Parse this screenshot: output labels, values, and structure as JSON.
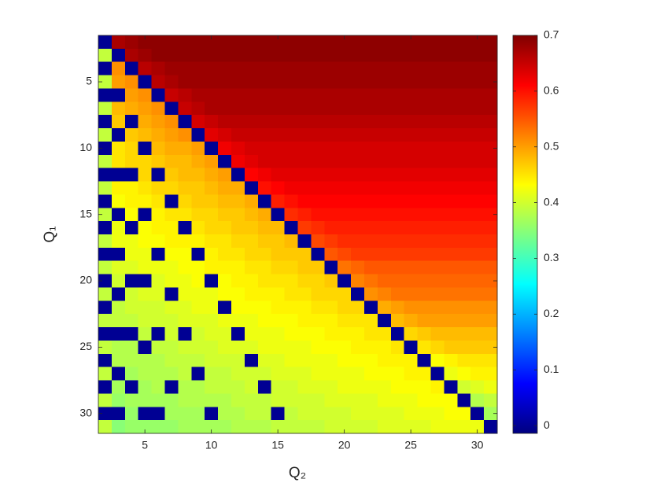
{
  "chart_data": {
    "type": "heatmap",
    "colormap": "jet",
    "colorbar": true,
    "xlabel": "Q₂",
    "ylabel": "Q₁",
    "x": [
      2,
      3,
      4,
      5,
      6,
      7,
      8,
      9,
      10,
      11,
      12,
      13,
      14,
      15,
      16,
      17,
      18,
      19,
      20,
      21,
      22,
      23,
      24,
      25,
      26,
      27,
      28,
      29,
      30,
      31
    ],
    "y": [
      2,
      3,
      4,
      5,
      6,
      7,
      8,
      9,
      10,
      11,
      12,
      13,
      14,
      15,
      16,
      17,
      18,
      19,
      20,
      21,
      22,
      23,
      24,
      25,
      26,
      27,
      28,
      29,
      30,
      31
    ],
    "xlim": [
      1.5,
      31.5
    ],
    "ylim": [
      1.5,
      31.5
    ],
    "y_reversed": true,
    "xticks": [
      5,
      10,
      15,
      20,
      25,
      30
    ],
    "yticks": [
      5,
      10,
      15,
      20,
      25,
      30
    ],
    "clim": [
      -0.014,
      0.7
    ],
    "cticks": [
      0,
      0.1,
      0.2,
      0.3,
      0.4,
      0.5,
      0.6,
      0.7
    ],
    "z": [
      [
        0,
        0.67,
        0.68,
        0.69,
        0.69,
        0.69,
        0.69,
        0.69,
        0.69,
        0.69,
        0.69,
        0.69,
        0.69,
        0.69,
        0.69,
        0.69,
        0.69,
        0.69,
        0.69,
        0.69,
        0.69,
        0.69,
        0.69,
        0.69,
        0.69,
        0.69,
        0.69,
        0.69,
        0.69,
        0.69
      ],
      [
        0.39,
        0,
        0.67,
        0.68,
        0.69,
        0.69,
        0.69,
        0.69,
        0.69,
        0.69,
        0.69,
        0.69,
        0.69,
        0.69,
        0.69,
        0.69,
        0.69,
        0.69,
        0.69,
        0.69,
        0.69,
        0.69,
        0.69,
        0.69,
        0.69,
        0.69,
        0.69,
        0.69,
        0.69,
        0.69
      ],
      [
        0,
        0.51,
        0,
        0.66,
        0.67,
        0.68,
        0.68,
        0.68,
        0.68,
        0.68,
        0.68,
        0.68,
        0.68,
        0.68,
        0.68,
        0.68,
        0.68,
        0.68,
        0.68,
        0.68,
        0.68,
        0.68,
        0.68,
        0.68,
        0.68,
        0.68,
        0.68,
        0.68,
        0.68,
        0.68
      ],
      [
        0.39,
        0.5,
        0.51,
        0,
        0.66,
        0.67,
        0.68,
        0.68,
        0.68,
        0.68,
        0.68,
        0.68,
        0.68,
        0.68,
        0.68,
        0.68,
        0.68,
        0.68,
        0.68,
        0.68,
        0.68,
        0.68,
        0.68,
        0.68,
        0.68,
        0.68,
        0.68,
        0.68,
        0.68,
        0.68
      ],
      [
        0,
        0,
        0.5,
        0.51,
        0,
        0.65,
        0.66,
        0.67,
        0.67,
        0.67,
        0.67,
        0.67,
        0.67,
        0.67,
        0.67,
        0.67,
        0.67,
        0.67,
        0.67,
        0.67,
        0.67,
        0.67,
        0.67,
        0.67,
        0.67,
        0.67,
        0.67,
        0.67,
        0.67,
        0.67
      ],
      [
        0.39,
        0.48,
        0.49,
        0.5,
        0.51,
        0,
        0.65,
        0.66,
        0.67,
        0.67,
        0.67,
        0.67,
        0.67,
        0.67,
        0.67,
        0.67,
        0.67,
        0.67,
        0.67,
        0.67,
        0.67,
        0.67,
        0.67,
        0.67,
        0.67,
        0.67,
        0.67,
        0.67,
        0.67,
        0.67
      ],
      [
        0,
        0.47,
        0,
        0.49,
        0.5,
        0.51,
        0,
        0.64,
        0.65,
        0.66,
        0.66,
        0.66,
        0.66,
        0.66,
        0.66,
        0.66,
        0.66,
        0.66,
        0.66,
        0.66,
        0.66,
        0.66,
        0.66,
        0.66,
        0.66,
        0.66,
        0.66,
        0.66,
        0.66,
        0.66
      ],
      [
        0.39,
        0,
        0.47,
        0.48,
        0.49,
        0.5,
        0.51,
        0,
        0.63,
        0.64,
        0.65,
        0.65,
        0.65,
        0.65,
        0.65,
        0.65,
        0.65,
        0.65,
        0.65,
        0.65,
        0.65,
        0.65,
        0.65,
        0.65,
        0.65,
        0.65,
        0.65,
        0.65,
        0.65,
        0.65
      ],
      [
        0,
        0.45,
        0.46,
        0,
        0.48,
        0.49,
        0.49,
        0.5,
        0,
        0.62,
        0.63,
        0.64,
        0.64,
        0.64,
        0.64,
        0.64,
        0.64,
        0.64,
        0.64,
        0.64,
        0.64,
        0.64,
        0.64,
        0.64,
        0.64,
        0.64,
        0.64,
        0.64,
        0.64,
        0.64
      ],
      [
        0.39,
        0.45,
        0.46,
        0.46,
        0.47,
        0.48,
        0.48,
        0.49,
        0.5,
        0,
        0.62,
        0.63,
        0.64,
        0.64,
        0.64,
        0.64,
        0.64,
        0.64,
        0.64,
        0.64,
        0.64,
        0.64,
        0.64,
        0.64,
        0.64,
        0.64,
        0.64,
        0.64,
        0.64,
        0.64
      ],
      [
        0,
        0,
        0,
        0.46,
        0,
        0.47,
        0.48,
        0.48,
        0.49,
        0.5,
        0,
        0.61,
        0.62,
        0.63,
        0.63,
        0.63,
        0.63,
        0.63,
        0.63,
        0.63,
        0.63,
        0.63,
        0.63,
        0.63,
        0.63,
        0.63,
        0.63,
        0.63,
        0.63,
        0.63
      ],
      [
        0.39,
        0.44,
        0.44,
        0.45,
        0.46,
        0.46,
        0.47,
        0.47,
        0.48,
        0.49,
        0.49,
        0,
        0.6,
        0.61,
        0.62,
        0.62,
        0.62,
        0.62,
        0.62,
        0.62,
        0.62,
        0.62,
        0.62,
        0.62,
        0.62,
        0.62,
        0.62,
        0.62,
        0.62,
        0.62
      ],
      [
        0,
        0.43,
        0.44,
        0.44,
        0.45,
        0,
        0.46,
        0.47,
        0.47,
        0.48,
        0.48,
        0.49,
        0,
        0.59,
        0.6,
        0.61,
        0.61,
        0.61,
        0.61,
        0.61,
        0.61,
        0.61,
        0.61,
        0.61,
        0.61,
        0.61,
        0.61,
        0.61,
        0.61,
        0.61
      ],
      [
        0.39,
        0,
        0.43,
        0,
        0.44,
        0.45,
        0.45,
        0.46,
        0.46,
        0.47,
        0.47,
        0.48,
        0.49,
        0,
        0.58,
        0.59,
        0.6,
        0.6,
        0.6,
        0.6,
        0.6,
        0.6,
        0.6,
        0.6,
        0.6,
        0.6,
        0.6,
        0.6,
        0.6,
        0.6
      ],
      [
        0,
        0.42,
        0,
        0.43,
        0.44,
        0.44,
        0,
        0.45,
        0.46,
        0.46,
        0.47,
        0.47,
        0.48,
        0.48,
        0,
        0.57,
        0.58,
        0.59,
        0.59,
        0.59,
        0.59,
        0.59,
        0.59,
        0.59,
        0.59,
        0.59,
        0.59,
        0.59,
        0.59,
        0.59
      ],
      [
        0.39,
        0.42,
        0.42,
        0.43,
        0.43,
        0.44,
        0.44,
        0.44,
        0.45,
        0.45,
        0.46,
        0.46,
        0.47,
        0.47,
        0.48,
        0,
        0.56,
        0.57,
        0.58,
        0.58,
        0.58,
        0.58,
        0.58,
        0.58,
        0.58,
        0.58,
        0.58,
        0.58,
        0.58,
        0.58
      ],
      [
        0,
        0,
        0.42,
        0.42,
        0,
        0.43,
        0.43,
        0,
        0.44,
        0.45,
        0.45,
        0.46,
        0.46,
        0.47,
        0.47,
        0.47,
        0,
        0.55,
        0.56,
        0.57,
        0.57,
        0.57,
        0.57,
        0.57,
        0.57,
        0.57,
        0.57,
        0.57,
        0.57,
        0.57
      ],
      [
        0.39,
        0.41,
        0.41,
        0.42,
        0.42,
        0.42,
        0.43,
        0.43,
        0.44,
        0.44,
        0.44,
        0.45,
        0.45,
        0.46,
        0.46,
        0.47,
        0.47,
        0,
        0.53,
        0.54,
        0.55,
        0.55,
        0.55,
        0.55,
        0.55,
        0.55,
        0.55,
        0.55,
        0.55,
        0.55
      ],
      [
        0,
        0.4,
        0,
        0,
        0.41,
        0.42,
        0.42,
        0.43,
        0,
        0.43,
        0.44,
        0.44,
        0.45,
        0.45,
        0.45,
        0.46,
        0.46,
        0.47,
        0,
        0.52,
        0.53,
        0.54,
        0.54,
        0.54,
        0.54,
        0.54,
        0.54,
        0.54,
        0.54,
        0.54
      ],
      [
        0.39,
        0,
        0.4,
        0.41,
        0.41,
        0,
        0.42,
        0.42,
        0.42,
        0.43,
        0.43,
        0.44,
        0.44,
        0.44,
        0.45,
        0.45,
        0.46,
        0.46,
        0.46,
        0,
        0.51,
        0.52,
        0.53,
        0.53,
        0.53,
        0.53,
        0.53,
        0.53,
        0.53,
        0.53
      ],
      [
        0,
        0.39,
        0.4,
        0.4,
        0.4,
        0.41,
        0.41,
        0.42,
        0.42,
        0,
        0.43,
        0.43,
        0.43,
        0.44,
        0.44,
        0.44,
        0.45,
        0.45,
        0.46,
        0.46,
        0,
        0.49,
        0.5,
        0.51,
        0.51,
        0.51,
        0.51,
        0.51,
        0.51,
        0.51
      ],
      [
        0.39,
        0.39,
        0.39,
        0.4,
        0.4,
        0.4,
        0.41,
        0.41,
        0.41,
        0.42,
        0.42,
        0.42,
        0.43,
        0.43,
        0.43,
        0.44,
        0.44,
        0.44,
        0.45,
        0.45,
        0.45,
        0,
        0.48,
        0.49,
        0.5,
        0.5,
        0.5,
        0.5,
        0.5,
        0.5
      ],
      [
        0,
        0,
        0,
        0.39,
        0,
        0.4,
        0,
        0.4,
        0.41,
        0.41,
        0,
        0.42,
        0.42,
        0.42,
        0.43,
        0.43,
        0.43,
        0.44,
        0.44,
        0.44,
        0.45,
        0.45,
        0,
        0.46,
        0.47,
        0.48,
        0.48,
        0.48,
        0.48,
        0.48
      ],
      [
        0.39,
        0.38,
        0.38,
        0,
        0.39,
        0.39,
        0.4,
        0.4,
        0.4,
        0.41,
        0.41,
        0.41,
        0.42,
        0.42,
        0.42,
        0.42,
        0.43,
        0.43,
        0.43,
        0.44,
        0.44,
        0.44,
        0.45,
        0,
        0.45,
        0.46,
        0.47,
        0.47,
        0.47,
        0.47
      ],
      [
        0,
        0.38,
        0.38,
        0.38,
        0.38,
        0.39,
        0.39,
        0.39,
        0.4,
        0.4,
        0.4,
        0,
        0.41,
        0.41,
        0.42,
        0.42,
        0.42,
        0.42,
        0.43,
        0.43,
        0.43,
        0.44,
        0.44,
        0.44,
        0,
        0.43,
        0.44,
        0.45,
        0.45,
        0.45
      ],
      [
        0.39,
        0,
        0.37,
        0.38,
        0.38,
        0.38,
        0.39,
        0,
        0.39,
        0.39,
        0.4,
        0.4,
        0.4,
        0.41,
        0.41,
        0.41,
        0.42,
        0.42,
        0.42,
        0.42,
        0.43,
        0.43,
        0.43,
        0.44,
        0.44,
        0,
        0.42,
        0.43,
        0.44,
        0.44
      ],
      [
        0,
        0.37,
        0,
        0.37,
        0.38,
        0,
        0.38,
        0.38,
        0.39,
        0.39,
        0.39,
        0.4,
        0,
        0.4,
        0.4,
        0.41,
        0.41,
        0.41,
        0.42,
        0.42,
        0.42,
        0.42,
        0.43,
        0.43,
        0.43,
        0.44,
        0,
        0.4,
        0.41,
        0.42
      ],
      [
        0.39,
        0.36,
        0.37,
        0.37,
        0.37,
        0.37,
        0.38,
        0.38,
        0.38,
        0.38,
        0.39,
        0.39,
        0.39,
        0.4,
        0.4,
        0.4,
        0.4,
        0.41,
        0.41,
        0.41,
        0.41,
        0.42,
        0.42,
        0.42,
        0.43,
        0.43,
        0.43,
        0,
        0.38,
        0.39
      ],
      [
        0,
        0,
        0.36,
        0,
        0,
        0.37,
        0.37,
        0.37,
        0,
        0.38,
        0.38,
        0.39,
        0.39,
        0,
        0.39,
        0.4,
        0.4,
        0.4,
        0.4,
        0.41,
        0.41,
        0.41,
        0.41,
        0.42,
        0.42,
        0.42,
        0.43,
        0.43,
        0,
        0.37
      ],
      [
        0.39,
        0.35,
        0.36,
        0.36,
        0.36,
        0.36,
        0.37,
        0.37,
        0.37,
        0.37,
        0.38,
        0.38,
        0.38,
        0.39,
        0.39,
        0.39,
        0.39,
        0.4,
        0.4,
        0.4,
        0.4,
        0.41,
        0.41,
        0.41,
        0.41,
        0.42,
        0.42,
        0.42,
        0.42,
        0
      ]
    ]
  }
}
